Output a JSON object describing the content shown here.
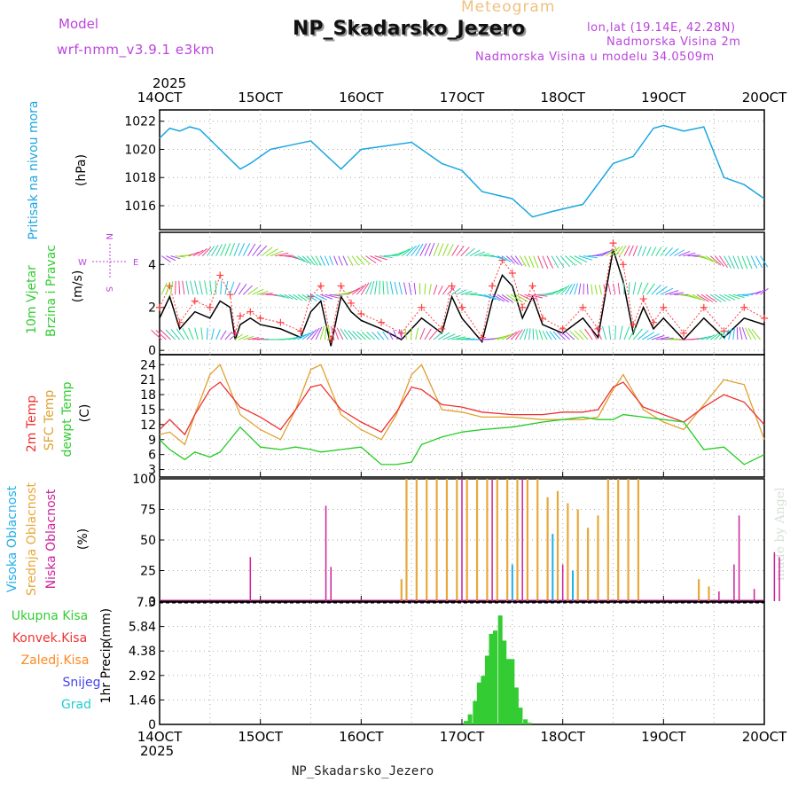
{
  "header": {
    "model_label": "Model",
    "model_name": "wrf-nmm_v3.9.1 e3km",
    "meteogram_label": "Meteogram",
    "station_title": "NP_Skadarsko_Jezero",
    "lonlat": "lon,lat (19.14E, 42.28N)",
    "elevation": "Nadmorska Visina 2m",
    "model_elevation": "Nadmorska Visina u modelu 34.0509m",
    "footer_station": "NP_Skadarsko_Jezero",
    "watermark": "made by Angel",
    "year_top": "2025",
    "year_bottom": "2025"
  },
  "colors": {
    "pressure": "#1ba6e2",
    "t2m": "#ee3030",
    "tsfc": "#e0a030",
    "dew": "#22cc22",
    "wind_speed": "#000000",
    "gust": "#ff4040",
    "high_cloud": "#21aee8",
    "mid_cloud": "#e8a838",
    "low_cloud": "#cc2299",
    "rain_total": "#33cc33",
    "rain_conv": "#ee3333",
    "rain_frz": "#ff8822",
    "snow": "#4444ee",
    "graupel": "#22cccc",
    "model_text": "#bb44dd"
  },
  "chart_data": {
    "type": "meteogram",
    "x_start_day": 14,
    "x_end_day": 20,
    "x_ticks": [
      "14OCT",
      "15OCT",
      "16OCT",
      "17OCT",
      "18OCT",
      "19OCT",
      "20OCT"
    ],
    "panels": {
      "pressure": {
        "ylabel_main": "Pritisak na nivou mora",
        "ylabel_unit": "(hPa)",
        "yticks": [
          "1016",
          "1018",
          "1020",
          "1022"
        ],
        "ylim": [
          1014.3,
          1022.8
        ],
        "x": [
          14.0,
          14.1,
          14.2,
          14.3,
          14.4,
          14.6,
          14.8,
          14.9,
          15.1,
          15.3,
          15.5,
          15.8,
          16.0,
          16.2,
          16.5,
          16.8,
          17.0,
          17.2,
          17.5,
          17.7,
          17.9,
          18.2,
          18.5,
          18.7,
          18.9,
          19.0,
          19.2,
          19.4,
          19.6,
          19.8,
          20.0
        ],
        "values": [
          1020.8,
          1021.5,
          1021.3,
          1021.6,
          1021.4,
          1020.0,
          1018.6,
          1019.0,
          1020.0,
          1020.3,
          1020.6,
          1018.6,
          1020.0,
          1020.2,
          1020.5,
          1019.0,
          1018.5,
          1017.0,
          1016.5,
          1015.2,
          1015.6,
          1016.1,
          1019.0,
          1019.5,
          1021.5,
          1021.7,
          1021.3,
          1021.6,
          1018.0,
          1017.5,
          1016.5
        ]
      },
      "wind": {
        "ylabel_main": "10m Vjetar",
        "ylabel_sub": "Brzina i Pravac",
        "ylabel_unit": "(m/s)",
        "yticks": [
          "0",
          "2",
          "4"
        ],
        "ylim": [
          -0.2,
          5.5
        ],
        "compass": {
          "n": "N",
          "s": "S",
          "e": "E",
          "w": "W"
        },
        "x": [
          14.0,
          14.1,
          14.2,
          14.35,
          14.5,
          14.6,
          14.7,
          14.75,
          14.8,
          14.9,
          15.0,
          15.2,
          15.4,
          15.5,
          15.6,
          15.7,
          15.8,
          15.9,
          16.0,
          16.2,
          16.4,
          16.6,
          16.8,
          16.9,
          17.0,
          17.2,
          17.3,
          17.4,
          17.5,
          17.6,
          17.7,
          17.8,
          18.0,
          18.2,
          18.35,
          18.5,
          18.6,
          18.7,
          18.8,
          18.9,
          19.0,
          19.2,
          19.4,
          19.6,
          19.8,
          20.0
        ],
        "speed": [
          1.5,
          2.5,
          1.0,
          1.8,
          1.5,
          2.3,
          2.0,
          0.5,
          1.2,
          1.5,
          1.2,
          1.0,
          0.6,
          1.8,
          2.3,
          0.2,
          2.5,
          1.8,
          1.4,
          1.0,
          0.5,
          1.5,
          0.8,
          2.5,
          1.5,
          0.4,
          2.3,
          3.5,
          3.0,
          1.5,
          2.5,
          1.2,
          0.8,
          1.5,
          0.6,
          4.7,
          3.2,
          0.8,
          2.0,
          1.0,
          1.5,
          0.5,
          1.5,
          0.6,
          1.5,
          1.2
        ],
        "gust": [
          2.0,
          3.0,
          1.3,
          2.3,
          2.0,
          3.5,
          2.6,
          0.8,
          1.6,
          1.8,
          1.5,
          1.3,
          0.9,
          2.5,
          3.0,
          0.5,
          3.0,
          2.2,
          1.7,
          1.3,
          0.8,
          2.0,
          1.0,
          3.0,
          2.0,
          0.6,
          3.0,
          4.2,
          3.6,
          2.0,
          3.0,
          1.5,
          1.0,
          2.0,
          1.0,
          5.0,
          4.0,
          1.2,
          2.4,
          1.3,
          2.0,
          0.8,
          2.0,
          0.9,
          2.0,
          1.5
        ]
      },
      "temperature": {
        "ylabel_t2m": "2m Temp",
        "ylabel_tsfc": "SFC Temp",
        "ylabel_dew": "dewpt Temp",
        "ylabel_unit": "(C)",
        "yticks": [
          "3",
          "6",
          "9",
          "12",
          "15",
          "18",
          "21",
          "24"
        ],
        "ylim": [
          1.5,
          26
        ],
        "x": [
          14.0,
          14.1,
          14.25,
          14.35,
          14.5,
          14.6,
          14.8,
          15.0,
          15.2,
          15.35,
          15.5,
          15.6,
          15.8,
          16.0,
          16.2,
          16.35,
          16.5,
          16.6,
          16.8,
          17.0,
          17.2,
          17.5,
          17.8,
          18.0,
          18.2,
          18.35,
          18.5,
          18.6,
          18.8,
          19.0,
          19.2,
          19.4,
          19.6,
          19.8,
          20.0
        ],
        "t2m": [
          11.0,
          13.0,
          10.0,
          14.0,
          19.0,
          20.5,
          15.5,
          13.5,
          11.0,
          15.0,
          19.5,
          20.0,
          15.0,
          12.5,
          10.5,
          14.5,
          19.5,
          19.0,
          16.0,
          15.5,
          14.5,
          14.0,
          14.0,
          14.5,
          14.5,
          15.0,
          19.5,
          20.5,
          15.5,
          14.0,
          12.5,
          15.5,
          18.0,
          16.5,
          12.0
        ],
        "tsfc": [
          10.0,
          10.5,
          8.0,
          14.0,
          22.0,
          24.0,
          14.0,
          11.0,
          9.0,
          15.0,
          23.0,
          24.0,
          14.0,
          11.0,
          9.0,
          14.0,
          22.0,
          24.0,
          15.0,
          14.5,
          13.5,
          13.5,
          13.0,
          13.0,
          13.0,
          13.5,
          19.0,
          22.0,
          15.0,
          12.5,
          11.0,
          16.0,
          21.0,
          20.0,
          9.0
        ],
        "dew": [
          9.0,
          7.0,
          5.0,
          6.5,
          5.5,
          6.5,
          11.5,
          7.5,
          7.0,
          7.5,
          7.0,
          6.5,
          7.0,
          7.5,
          4.0,
          4.0,
          4.5,
          8.0,
          9.5,
          10.5,
          11.0,
          11.5,
          12.5,
          13.0,
          13.5,
          13.0,
          13.0,
          14.0,
          13.5,
          13.0,
          12.5,
          7.0,
          7.5,
          4.0,
          6.0
        ]
      },
      "clouds": {
        "ylabel_high": "Visoka Oblacnost",
        "ylabel_mid": "Srednja Oblacnost",
        "ylabel_low": "Niska Oblacnost",
        "ylabel_unit": "(%)",
        "yticks": [
          "0",
          "25",
          "50",
          "75",
          "100"
        ],
        "ylim": [
          0,
          100
        ],
        "high": [
          [
            17.5,
            30
          ],
          [
            17.9,
            55
          ],
          [
            18.1,
            25
          ]
        ],
        "mid": [
          [
            16.4,
            18
          ],
          [
            16.45,
            100
          ],
          [
            16.55,
            100
          ],
          [
            16.65,
            100
          ],
          [
            16.75,
            100
          ],
          [
            16.85,
            100
          ],
          [
            16.95,
            100
          ],
          [
            17.05,
            100
          ],
          [
            17.15,
            100
          ],
          [
            17.25,
            100
          ],
          [
            17.35,
            100
          ],
          [
            17.45,
            100
          ],
          [
            17.55,
            100
          ],
          [
            17.65,
            100
          ],
          [
            17.75,
            100
          ],
          [
            17.85,
            85
          ],
          [
            17.95,
            90
          ],
          [
            18.05,
            80
          ],
          [
            18.15,
            75
          ],
          [
            18.25,
            60
          ],
          [
            18.35,
            70
          ],
          [
            18.45,
            100
          ],
          [
            18.55,
            100
          ],
          [
            18.65,
            100
          ],
          [
            18.75,
            100
          ],
          [
            19.35,
            18
          ],
          [
            19.45,
            12
          ]
        ],
        "low": [
          [
            14.9,
            36
          ],
          [
            15.65,
            78
          ],
          [
            15.7,
            28
          ],
          [
            17.0,
            100
          ],
          [
            17.3,
            100
          ],
          [
            17.6,
            100
          ],
          [
            18.0,
            30
          ],
          [
            19.55,
            8
          ],
          [
            19.7,
            30
          ],
          [
            19.75,
            70
          ],
          [
            19.9,
            10
          ],
          [
            20.1,
            40
          ],
          [
            20.15,
            36
          ]
        ]
      },
      "precip": {
        "ylabel_main": "1hr Precip",
        "ylabel_unit": "(mm)",
        "legend": [
          "Ukupna Kisa",
          "Konvek.Kisa",
          "Zaledj.Kisa",
          "Snijeg",
          "Grad"
        ],
        "yticks": [
          "0",
          "1.46",
          "2.92",
          "4.38",
          "5.84",
          "7.3"
        ],
        "ylim": [
          0,
          7.3
        ],
        "x": [
          17.04,
          17.08,
          17.13,
          17.17,
          17.21,
          17.25,
          17.29,
          17.33,
          17.38,
          17.42,
          17.46,
          17.5,
          17.54,
          17.58,
          17.63,
          17.67
        ],
        "values": [
          0.2,
          0.6,
          1.4,
          2.5,
          2.9,
          4.1,
          5.4,
          5.6,
          6.5,
          5.0,
          3.9,
          3.9,
          2.2,
          1.0,
          0.3,
          0.1
        ]
      }
    }
  }
}
